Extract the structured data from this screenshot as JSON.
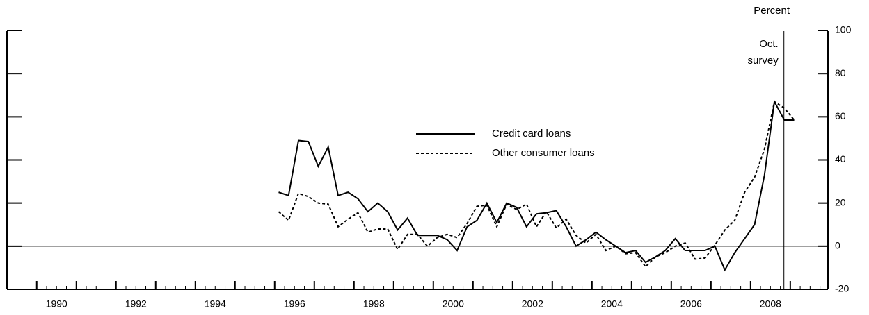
{
  "chart_data": {
    "type": "line",
    "y_unit_label": "Percent",
    "x": [
      1996.1,
      1996.35,
      1996.6,
      1996.85,
      1997.1,
      1997.35,
      1997.6,
      1997.85,
      1998.1,
      1998.35,
      1998.6,
      1998.85,
      1999.1,
      1999.35,
      1999.6,
      1999.85,
      2000.1,
      2000.35,
      2000.6,
      2000.85,
      2001.1,
      2001.35,
      2001.6,
      2001.85,
      2002.1,
      2002.35,
      2002.6,
      2002.85,
      2003.1,
      2003.35,
      2003.6,
      2003.85,
      2004.1,
      2004.35,
      2004.6,
      2004.85,
      2005.1,
      2005.35,
      2005.6,
      2005.85,
      2006.1,
      2006.35,
      2006.6,
      2006.85,
      2007.1,
      2007.35,
      2007.6,
      2007.85,
      2008.1,
      2008.35,
      2008.6,
      2008.85,
      2009.1
    ],
    "series": [
      {
        "name": "Credit card loans",
        "color": "#000000",
        "dash": "solid",
        "values": [
          25,
          23.5,
          49,
          48.5,
          37,
          46,
          23.5,
          25,
          22,
          16,
          20,
          16,
          7.5,
          13,
          5,
          5,
          5,
          3,
          -2,
          9,
          12,
          20,
          11,
          20,
          18,
          9,
          15,
          15.5,
          16.5,
          9,
          0,
          3,
          6.5,
          3,
          0,
          -3,
          -2,
          -7.5,
          -5,
          -2,
          3.5,
          -2,
          -2,
          -2,
          0,
          -11,
          -3,
          3.5,
          10,
          33,
          67,
          58.5,
          58.5
        ]
      },
      {
        "name": "Other consumer loans",
        "color": "#000000",
        "dash": "dotted",
        "values": [
          16,
          12,
          24.5,
          23,
          20,
          19.5,
          9,
          12.5,
          15.5,
          6.5,
          8,
          8,
          -1.5,
          5.5,
          5.5,
          0,
          4,
          5.5,
          4,
          10.5,
          18.5,
          19,
          9,
          19.5,
          17,
          19.5,
          9,
          16,
          8.5,
          12.5,
          5,
          1.5,
          5.5,
          -2,
          0,
          -3.5,
          -3,
          -9.5,
          -5,
          -3,
          0,
          1.5,
          -6,
          -5.5,
          0.5,
          7.5,
          12,
          25,
          32,
          45,
          67,
          64,
          58.5
        ]
      }
    ],
    "xlim": [
      1989.25,
      2009.95
    ],
    "xticks": [
      {
        "value": 1990.5,
        "label": "1990"
      },
      {
        "value": 1992.5,
        "label": "1992"
      },
      {
        "value": 1994.5,
        "label": "1994"
      },
      {
        "value": 1996.5,
        "label": "1996"
      },
      {
        "value": 1998.5,
        "label": "1998"
      },
      {
        "value": 2000.5,
        "label": "2000"
      },
      {
        "value": 2002.5,
        "label": "2002"
      },
      {
        "value": 2004.5,
        "label": "2004"
      },
      {
        "value": 2006.5,
        "label": "2006"
      },
      {
        "value": 2008.5,
        "label": "2008"
      }
    ],
    "ylim": [
      -20,
      100
    ],
    "yticks": [
      -20,
      0,
      20,
      40,
      60,
      80,
      100
    ],
    "annotation": {
      "lines": [
        "Oct.",
        "survey"
      ],
      "x": 2008.84
    }
  }
}
